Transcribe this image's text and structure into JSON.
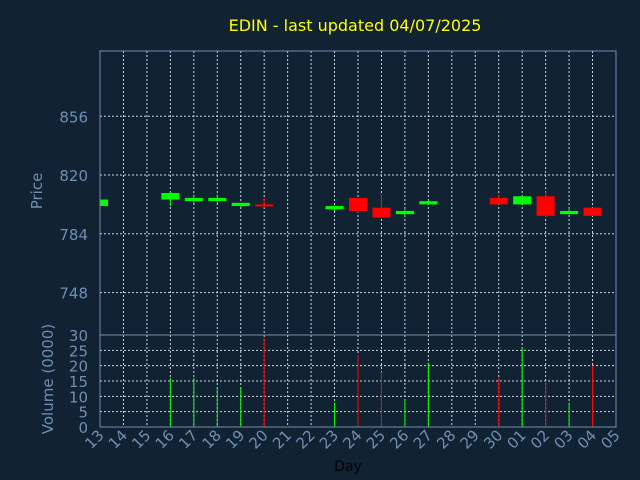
{
  "chart_data": [
    {
      "type": "candlestick",
      "title": "EDIN - last updated 04/07/2025",
      "ylabel": "Price",
      "ylim": [
        722,
        896
      ],
      "yticks": [
        "856",
        "820",
        "784",
        "748"
      ],
      "grid": true,
      "x": [
        "13",
        "14",
        "15",
        "16",
        "17",
        "18",
        "19",
        "20",
        "21",
        "22",
        "23",
        "24",
        "25",
        "26",
        "27",
        "28",
        "29",
        "30",
        "01",
        "02",
        "03",
        "04",
        "05"
      ],
      "series": [
        {
          "values": [
            {
              "day": "13",
              "open": 801,
              "close": 805,
              "high": 805,
              "low": 801,
              "dir": "up"
            },
            {
              "day": "16",
              "open": 805,
              "close": 809,
              "high": 810,
              "low": 801,
              "dir": "up"
            },
            {
              "day": "17",
              "open": 804,
              "close": 806,
              "high": 808,
              "low": 803,
              "dir": "up"
            },
            {
              "day": "18",
              "open": 804,
              "close": 806,
              "high": 808,
              "low": 803,
              "dir": "up"
            },
            {
              "day": "19",
              "open": 801,
              "close": 803,
              "high": 803,
              "low": 800,
              "dir": "up"
            },
            {
              "day": "20",
              "open": 802,
              "close": 801,
              "high": 806,
              "low": 800,
              "dir": "down"
            },
            {
              "day": "23",
              "open": 799,
              "close": 801,
              "high": 801,
              "low": 798,
              "dir": "up"
            },
            {
              "day": "24",
              "open": 806,
              "close": 798,
              "high": 806,
              "low": 797,
              "dir": "down"
            },
            {
              "day": "25",
              "open": 800,
              "close": 794,
              "high": 808,
              "low": 794,
              "dir": "down"
            },
            {
              "day": "26",
              "open": 796,
              "close": 798,
              "high": 799,
              "low": 794,
              "dir": "up"
            },
            {
              "day": "27",
              "open": 802,
              "close": 804,
              "high": 805,
              "low": 802,
              "dir": "up"
            },
            {
              "day": "30",
              "open": 806,
              "close": 802,
              "high": 808,
              "low": 802,
              "dir": "down"
            },
            {
              "day": "01",
              "open": 802,
              "close": 807,
              "high": 807,
              "low": 802,
              "dir": "up"
            },
            {
              "day": "02",
              "open": 807,
              "close": 795,
              "high": 810,
              "low": 794,
              "dir": "down"
            },
            {
              "day": "03",
              "open": 796,
              "close": 798,
              "high": 800,
              "low": 796,
              "dir": "up"
            },
            {
              "day": "04",
              "open": 800,
              "close": 795,
              "high": 800,
              "low": 795,
              "dir": "down"
            }
          ]
        }
      ]
    },
    {
      "type": "bar",
      "xlabel": "Day",
      "ylabel": "Volume (0000)",
      "ylim": [
        0,
        30
      ],
      "yticks": [
        "30",
        "25",
        "20",
        "15",
        "10",
        "5",
        "0"
      ],
      "grid": true,
      "categories": [
        "13",
        "14",
        "15",
        "16",
        "17",
        "18",
        "19",
        "20",
        "21",
        "22",
        "23",
        "24",
        "25",
        "26",
        "27",
        "28",
        "29",
        "30",
        "01",
        "02",
        "03",
        "04",
        "05"
      ],
      "values": [
        {
          "day": "16",
          "value": 16,
          "dir": "up"
        },
        {
          "day": "17",
          "value": 16,
          "dir": "up"
        },
        {
          "day": "18",
          "value": 13,
          "dir": "up"
        },
        {
          "day": "19",
          "value": 13,
          "dir": "up"
        },
        {
          "day": "20",
          "value": 29,
          "dir": "down"
        },
        {
          "day": "23",
          "value": 8,
          "dir": "up"
        },
        {
          "day": "24",
          "value": 23.5,
          "dir": "down"
        },
        {
          "day": "25",
          "value": 18,
          "dir": "down"
        },
        {
          "day": "26",
          "value": 9,
          "dir": "up"
        },
        {
          "day": "27",
          "value": 21,
          "dir": "up"
        },
        {
          "day": "30",
          "value": 16,
          "dir": "down"
        },
        {
          "day": "01",
          "value": 26,
          "dir": "up"
        },
        {
          "day": "02",
          "value": 15,
          "dir": "down"
        },
        {
          "day": "03",
          "value": 8,
          "dir": "up"
        },
        {
          "day": "04",
          "value": 20,
          "dir": "down"
        }
      ]
    }
  ],
  "colors": {
    "background": "#112233",
    "up": "#00ff00",
    "down": "#ff0000",
    "title": "#ffff00",
    "axis_text": "#6f8fb2",
    "grid": "#d0d8e0",
    "frame": "#6f8fb2"
  }
}
